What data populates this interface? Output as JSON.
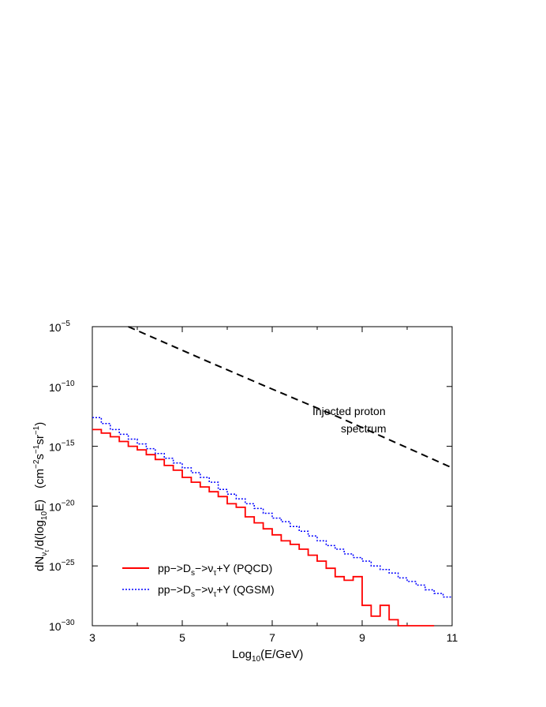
{
  "chart_data": {
    "type": "line",
    "x_scale": "linear",
    "y_scale": "log",
    "xlim": [
      3,
      11
    ],
    "ylim_exponent": [
      -30,
      -5
    ],
    "x_ticks": [
      "3",
      "5",
      "7",
      "9",
      "11"
    ],
    "y_ticks": [
      {
        "base": "10",
        "exp": "−5"
      },
      {
        "base": "10",
        "exp": "−10"
      },
      {
        "base": "10",
        "exp": "−15"
      },
      {
        "base": "10",
        "exp": "−20"
      },
      {
        "base": "10",
        "exp": "−25"
      },
      {
        "base": "10",
        "exp": "−30"
      }
    ],
    "xlabel": {
      "pre": "Log",
      "sub": "10",
      "post": "(E/GeV)"
    },
    "ylabel": {
      "part1": "dN",
      "sub1": "ν",
      "sub2": "τ",
      "part2": "/d(log",
      "sub3": "10",
      "part3": "E)",
      "units_pre": "(cm",
      "units_exp1": "−2",
      "units_mid1": "s",
      "units_exp2": "−1",
      "units_mid2": "sr",
      "units_exp3": "−1",
      "units_post": ")"
    },
    "annotation": {
      "line1": "Injected proton",
      "line2": "spectrum"
    },
    "series": [
      {
        "name": {
          "pre": "pp−>D",
          "sub1": "s",
          "mid": "−>ν",
          "sub2": "τ",
          "post": "+Y (PQCD)"
        },
        "color": "#ff0000",
        "style": "step-solid",
        "step_width": 0.2,
        "x_start": 3.0,
        "log10_values": [
          -13.6,
          -13.9,
          -14.2,
          -14.6,
          -15.0,
          -15.3,
          -15.7,
          -16.1,
          -16.6,
          -17.0,
          -17.6,
          -18.0,
          -18.4,
          -18.8,
          -19.2,
          -19.8,
          -20.1,
          -20.9,
          -21.4,
          -21.9,
          -22.4,
          -22.9,
          -23.2,
          -23.6,
          -24.1,
          -24.6,
          -25.2,
          -25.9,
          -26.2,
          -25.9,
          -28.3,
          -29.2,
          -28.3,
          -29.5,
          -30.3,
          -30.7,
          -30.3,
          -32.0
        ]
      },
      {
        "name": {
          "pre": "pp−>D",
          "sub1": "s",
          "mid": "−>ν",
          "sub2": "τ",
          "post": "+Y (QGSM)"
        },
        "color": "#0000ff",
        "style": "step-dotted",
        "step_width": 0.2,
        "x_start": 3.0,
        "log10_values": [
          -12.6,
          -13.1,
          -13.6,
          -14.0,
          -14.4,
          -14.8,
          -15.2,
          -15.6,
          -16.0,
          -16.4,
          -16.8,
          -17.2,
          -17.6,
          -18.0,
          -18.6,
          -19.0,
          -19.4,
          -19.8,
          -20.2,
          -20.6,
          -21.0,
          -21.3,
          -21.7,
          -22.1,
          -22.5,
          -22.9,
          -23.3,
          -23.6,
          -24.0,
          -24.3,
          -24.6,
          -25.0,
          -25.3,
          -25.6,
          -26.0,
          -26.3,
          -26.6,
          -27.0,
          -27.3,
          -27.6
        ]
      },
      {
        "name": "",
        "color": "#000000",
        "style": "dashed",
        "x": [
          3.8,
          5.5,
          6.8,
          8.5,
          11.0
        ],
        "log10_values": [
          -5.0,
          -7.8,
          -9.9,
          -12.6,
          -16.8
        ]
      }
    ],
    "legend_position": "lower-left",
    "grid": false
  }
}
